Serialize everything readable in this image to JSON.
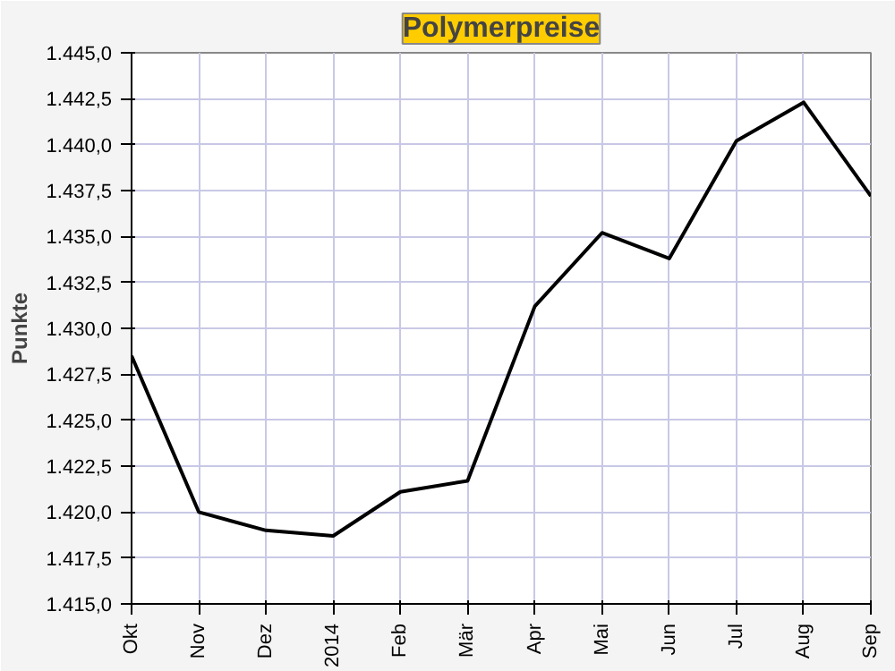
{
  "chart_data": {
    "type": "line",
    "title": "Polymerpreise",
    "ylabel": "Punkte",
    "categories": [
      "Okt",
      "Nov",
      "Dez",
      "2014",
      "Feb",
      "Mär",
      "Apr",
      "Mai",
      "Jun",
      "Jul",
      "Aug",
      "Sep"
    ],
    "series": [
      {
        "color": "#000000",
        "values": [
          1428.5,
          1420.0,
          1419.0,
          1418.7,
          1421.1,
          1421.7,
          1431.2,
          1435.2,
          1433.8,
          1440.2,
          1442.3,
          1437.2
        ]
      }
    ],
    "ylim": [
      1415,
      1445
    ],
    "yticks": [
      {
        "value": 1415,
        "label": "1.415,0"
      },
      {
        "value": 1417.5,
        "label": "1.417,5"
      },
      {
        "value": 1420,
        "label": "1.420,0"
      },
      {
        "value": 1422.5,
        "label": "1.422,5"
      },
      {
        "value": 1425,
        "label": "1.425,0"
      },
      {
        "value": 1427.5,
        "label": "1.427,5"
      },
      {
        "value": 1430,
        "label": "1.430,0"
      },
      {
        "value": 1432.5,
        "label": "1.432,5"
      },
      {
        "value": 1435,
        "label": "1.435,0"
      },
      {
        "value": 1437.5,
        "label": "1.437,5"
      },
      {
        "value": 1440,
        "label": "1.440,0"
      },
      {
        "value": 1442.5,
        "label": "1.442,5"
      },
      {
        "value": 1445,
        "label": "1.445,0"
      }
    ],
    "grid": true,
    "marker": "none",
    "line_style": "solid"
  }
}
